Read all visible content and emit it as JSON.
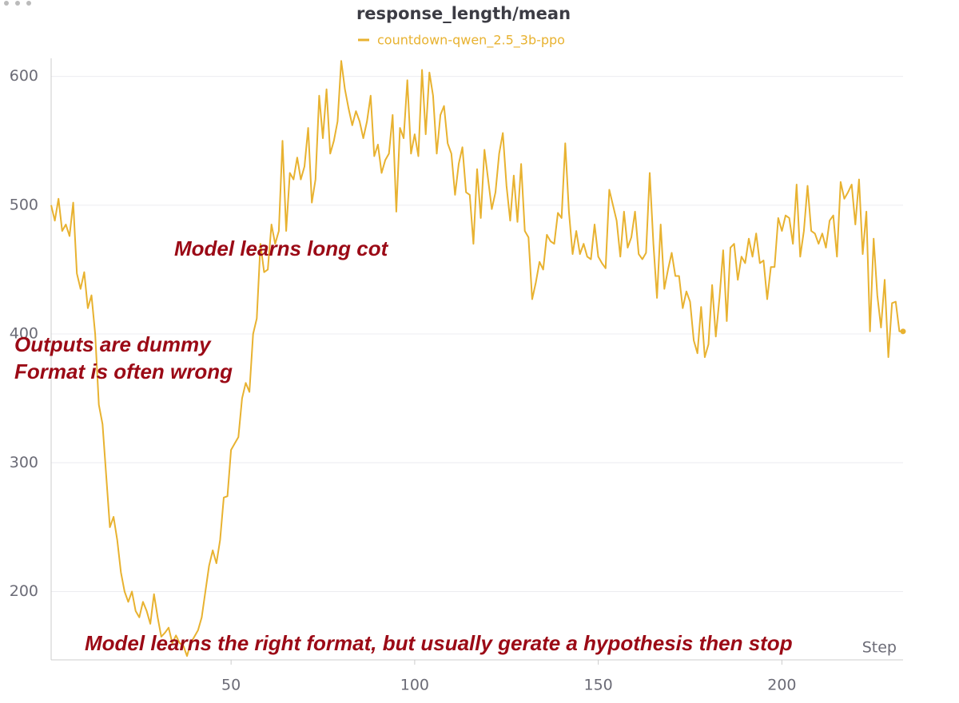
{
  "chart_data": {
    "type": "line",
    "title": "response_length/mean",
    "x_label": "Step",
    "annotations": [
      "Model learns long cot",
      "Outputs are dummy",
      "Format is often wrong",
      "Model learns the right format, but usually gerate a hypothesis then stop"
    ],
    "xlim": [
      1,
      233
    ],
    "xticks": [
      50,
      100,
      150,
      200
    ],
    "ylim": [
      147,
      614
    ],
    "yticks": [
      200,
      300,
      400,
      500,
      600
    ],
    "grid": true,
    "x": [
      1,
      2,
      3,
      4,
      5,
      6,
      7,
      8,
      9,
      10,
      11,
      12,
      13,
      14,
      15,
      16,
      17,
      18,
      19,
      20,
      21,
      22,
      23,
      24,
      25,
      26,
      27,
      28,
      29,
      30,
      31,
      32,
      33,
      34,
      35,
      36,
      37,
      38,
      39,
      40,
      41,
      42,
      43,
      44,
      45,
      46,
      47,
      48,
      49,
      50,
      51,
      52,
      53,
      54,
      55,
      56,
      57,
      58,
      59,
      60,
      61,
      62,
      63,
      64,
      65,
      66,
      67,
      68,
      69,
      70,
      71,
      72,
      73,
      74,
      75,
      76,
      77,
      78,
      79,
      80,
      81,
      82,
      83,
      84,
      85,
      86,
      87,
      88,
      89,
      90,
      91,
      92,
      93,
      94,
      95,
      96,
      97,
      98,
      99,
      100,
      101,
      102,
      103,
      104,
      105,
      106,
      107,
      108,
      109,
      110,
      111,
      112,
      113,
      114,
      115,
      116,
      117,
      118,
      119,
      120,
      121,
      122,
      123,
      124,
      125,
      126,
      127,
      128,
      129,
      130,
      131,
      132,
      133,
      134,
      135,
      136,
      137,
      138,
      139,
      140,
      141,
      142,
      143,
      144,
      145,
      146,
      147,
      148,
      149,
      150,
      151,
      152,
      153,
      154,
      155,
      156,
      157,
      158,
      159,
      160,
      161,
      162,
      163,
      164,
      165,
      166,
      167,
      168,
      169,
      170,
      171,
      172,
      173,
      174,
      175,
      176,
      177,
      178,
      179,
      180,
      181,
      182,
      183,
      184,
      185,
      186,
      187,
      188,
      189,
      190,
      191,
      192,
      193,
      194,
      195,
      196,
      197,
      198,
      199,
      200,
      201,
      202,
      203,
      204,
      205,
      206,
      207,
      208,
      209,
      210,
      211,
      212,
      213,
      214,
      215,
      216,
      217,
      218,
      219,
      220,
      221,
      222,
      223,
      224,
      225,
      226,
      227,
      228,
      229,
      230,
      231,
      232,
      233
    ],
    "series": [
      {
        "name": "countdown-qwen_2.5_3b-ppo",
        "color": "#e8b230",
        "values": [
          500,
          488,
          505,
          480,
          485,
          476,
          502,
          447,
          435,
          448,
          420,
          430,
          400,
          345,
          330,
          290,
          250,
          258,
          240,
          215,
          200,
          192,
          200,
          185,
          180,
          192,
          185,
          175,
          198,
          180,
          165,
          168,
          172,
          160,
          166,
          160,
          158,
          150,
          160,
          165,
          170,
          180,
          200,
          220,
          232,
          222,
          240,
          273,
          274,
          310,
          315,
          320,
          350,
          362,
          355,
          400,
          412,
          470,
          448,
          450,
          485,
          470,
          480,
          550,
          480,
          525,
          520,
          537,
          520,
          530,
          560,
          502,
          520,
          585,
          552,
          590,
          540,
          550,
          565,
          612,
          590,
          575,
          562,
          573,
          565,
          552,
          565,
          585,
          538,
          547,
          525,
          535,
          540,
          570,
          495,
          560,
          552,
          597,
          540,
          555,
          538,
          605,
          555,
          603,
          585,
          540,
          570,
          577,
          548,
          540,
          508,
          532,
          545,
          510,
          508,
          470,
          528,
          490,
          543,
          520,
          497,
          510,
          540,
          556,
          515,
          488,
          523,
          487,
          532,
          480,
          475,
          427,
          440,
          456,
          450,
          477,
          472,
          470,
          494,
          490,
          548,
          495,
          462,
          480,
          462,
          470,
          460,
          458,
          485,
          460,
          455,
          451,
          512,
          500,
          488,
          460,
          495,
          467,
          475,
          495,
          462,
          458,
          463,
          525,
          470,
          428,
          485,
          435,
          450,
          463,
          445,
          445,
          420,
          433,
          425,
          395,
          385,
          421,
          382,
          392,
          438,
          398,
          428,
          465,
          410,
          467,
          470,
          442,
          460,
          455,
          474,
          460,
          478,
          455,
          457,
          427,
          452,
          452,
          490,
          480,
          492,
          490,
          470,
          516,
          460,
          480,
          515,
          480,
          478,
          470,
          478,
          467,
          488,
          492,
          460,
          518,
          505,
          510,
          516,
          485,
          520,
          462,
          495,
          402,
          474,
          430,
          405,
          442,
          382,
          424,
          425,
          402,
          402
        ]
      }
    ]
  }
}
